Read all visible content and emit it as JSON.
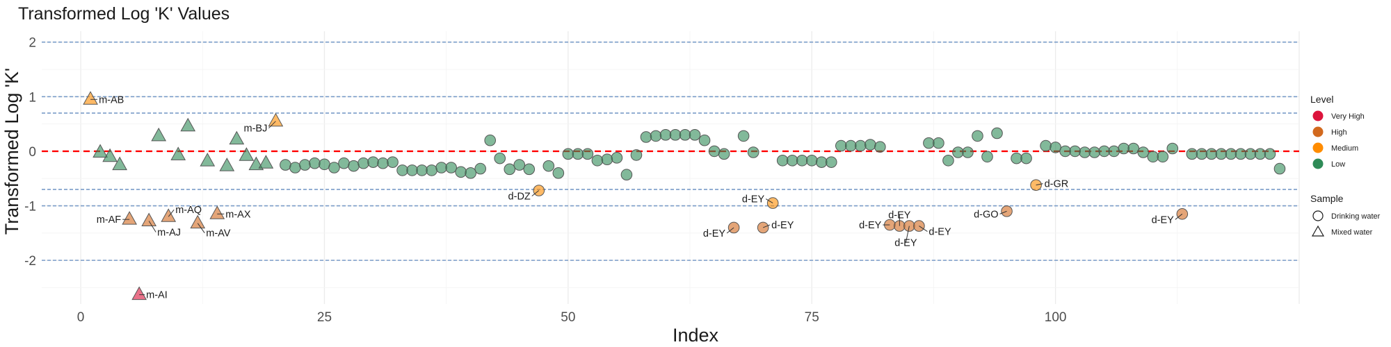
{
  "chart_data": {
    "type": "scatter",
    "title": "Transformed Log 'K' Values",
    "xlabel": "Index",
    "ylabel": "Transformed Log 'K'",
    "xlim": [
      -4,
      125
    ],
    "ylim": [
      -2.8,
      2.2
    ],
    "x_ticks": [
      0,
      25,
      50,
      75,
      100
    ],
    "y_ticks": [
      -2,
      -1,
      0,
      1,
      2
    ],
    "grid": true,
    "reference_lines": {
      "zero_line": {
        "y": 0,
        "color": "#ff0000",
        "style": "dashed"
      },
      "dotted_lines": {
        "y": [
          2,
          1,
          0.7,
          -0.7,
          -1,
          -2
        ],
        "color": "#7a9cc8",
        "style": "dashed"
      }
    },
    "legend": {
      "placement": "right",
      "level_title": "Level",
      "levels": [
        {
          "name": "Very High",
          "color": "#dc143c"
        },
        {
          "name": "High",
          "color": "#d2691e"
        },
        {
          "name": "Medium",
          "color": "#ff8c00"
        },
        {
          "name": "Low",
          "color": "#2e8b57"
        }
      ],
      "sample_title": "Sample",
      "samples": [
        {
          "name": "Drinking water",
          "shape": "circle"
        },
        {
          "name": "Mixed water",
          "shape": "triangle"
        }
      ]
    },
    "points": [
      {
        "x": 1,
        "y": 0.95,
        "level": "Medium",
        "sample": "Mixed water",
        "label": "m-AB"
      },
      {
        "x": 2,
        "y": -0.02,
        "level": "Low",
        "sample": "Mixed water"
      },
      {
        "x": 3,
        "y": -0.1,
        "level": "Low",
        "sample": "Mixed water"
      },
      {
        "x": 4,
        "y": -0.25,
        "level": "Low",
        "sample": "Mixed water"
      },
      {
        "x": 5,
        "y": -1.25,
        "level": "High",
        "sample": "Mixed water",
        "label": "m-AF"
      },
      {
        "x": 6,
        "y": -2.63,
        "level": "Very High",
        "sample": "Mixed water",
        "label": "m-AI"
      },
      {
        "x": 7,
        "y": -1.28,
        "level": "High",
        "sample": "Mixed water",
        "label": "m-AJ"
      },
      {
        "x": 8,
        "y": 0.28,
        "level": "Low",
        "sample": "Mixed water"
      },
      {
        "x": 9,
        "y": -1.2,
        "level": "High",
        "sample": "Mixed water",
        "label": "m-AQ"
      },
      {
        "x": 10,
        "y": -0.07,
        "level": "Low",
        "sample": "Mixed water"
      },
      {
        "x": 11,
        "y": 0.46,
        "level": "Low",
        "sample": "Mixed water"
      },
      {
        "x": 12,
        "y": -1.32,
        "level": "High",
        "sample": "Mixed water",
        "label": "m-AV"
      },
      {
        "x": 13,
        "y": -0.18,
        "level": "Low",
        "sample": "Mixed water"
      },
      {
        "x": 14,
        "y": -1.15,
        "level": "High",
        "sample": "Mixed water",
        "label": "m-AX"
      },
      {
        "x": 15,
        "y": -0.27,
        "level": "Low",
        "sample": "Mixed water"
      },
      {
        "x": 16,
        "y": 0.22,
        "level": "Low",
        "sample": "Mixed water"
      },
      {
        "x": 17,
        "y": -0.08,
        "level": "Low",
        "sample": "Mixed water"
      },
      {
        "x": 18,
        "y": -0.25,
        "level": "Low",
        "sample": "Mixed water"
      },
      {
        "x": 19,
        "y": -0.22,
        "level": "Low",
        "sample": "Mixed water"
      },
      {
        "x": 20,
        "y": 0.55,
        "level": "Medium",
        "sample": "Mixed water",
        "label": "m-BJ"
      },
      {
        "x": 21,
        "y": -0.25,
        "level": "Low",
        "sample": "Drinking water"
      },
      {
        "x": 22,
        "y": -0.3,
        "level": "Low",
        "sample": "Drinking water"
      },
      {
        "x": 23,
        "y": -0.25,
        "level": "Low",
        "sample": "Drinking water"
      },
      {
        "x": 24,
        "y": -0.22,
        "level": "Low",
        "sample": "Drinking water"
      },
      {
        "x": 25,
        "y": -0.24,
        "level": "Low",
        "sample": "Drinking water"
      },
      {
        "x": 26,
        "y": -0.3,
        "level": "Low",
        "sample": "Drinking water"
      },
      {
        "x": 27,
        "y": -0.22,
        "level": "Low",
        "sample": "Drinking water"
      },
      {
        "x": 28,
        "y": -0.27,
        "level": "Low",
        "sample": "Drinking water"
      },
      {
        "x": 29,
        "y": -0.22,
        "level": "Low",
        "sample": "Drinking water"
      },
      {
        "x": 30,
        "y": -0.2,
        "level": "Low",
        "sample": "Drinking water"
      },
      {
        "x": 31,
        "y": -0.22,
        "level": "Low",
        "sample": "Drinking water"
      },
      {
        "x": 32,
        "y": -0.2,
        "level": "Low",
        "sample": "Drinking water"
      },
      {
        "x": 33,
        "y": -0.35,
        "level": "Low",
        "sample": "Drinking water"
      },
      {
        "x": 34,
        "y": -0.35,
        "level": "Low",
        "sample": "Drinking water"
      },
      {
        "x": 35,
        "y": -0.35,
        "level": "Low",
        "sample": "Drinking water"
      },
      {
        "x": 36,
        "y": -0.35,
        "level": "Low",
        "sample": "Drinking water"
      },
      {
        "x": 37,
        "y": -0.3,
        "level": "Low",
        "sample": "Drinking water"
      },
      {
        "x": 38,
        "y": -0.3,
        "level": "Low",
        "sample": "Drinking water"
      },
      {
        "x": 39,
        "y": -0.38,
        "level": "Low",
        "sample": "Drinking water"
      },
      {
        "x": 40,
        "y": -0.4,
        "level": "Low",
        "sample": "Drinking water"
      },
      {
        "x": 41,
        "y": -0.32,
        "level": "Low",
        "sample": "Drinking water"
      },
      {
        "x": 42,
        "y": 0.2,
        "level": "Low",
        "sample": "Drinking water"
      },
      {
        "x": 43,
        "y": -0.13,
        "level": "Low",
        "sample": "Drinking water"
      },
      {
        "x": 44,
        "y": -0.33,
        "level": "Low",
        "sample": "Drinking water"
      },
      {
        "x": 45,
        "y": -0.25,
        "level": "Low",
        "sample": "Drinking water"
      },
      {
        "x": 46,
        "y": -0.33,
        "level": "Low",
        "sample": "Drinking water"
      },
      {
        "x": 47,
        "y": -0.72,
        "level": "Medium",
        "sample": "Drinking water",
        "label": "d-DZ"
      },
      {
        "x": 48,
        "y": -0.27,
        "level": "Low",
        "sample": "Drinking water"
      },
      {
        "x": 49,
        "y": -0.4,
        "level": "Low",
        "sample": "Drinking water"
      },
      {
        "x": 50,
        "y": -0.05,
        "level": "Low",
        "sample": "Drinking water"
      },
      {
        "x": 51,
        "y": -0.05,
        "level": "Low",
        "sample": "Drinking water"
      },
      {
        "x": 52,
        "y": -0.05,
        "level": "Low",
        "sample": "Drinking water"
      },
      {
        "x": 53,
        "y": -0.17,
        "level": "Low",
        "sample": "Drinking water"
      },
      {
        "x": 54,
        "y": -0.15,
        "level": "Low",
        "sample": "Drinking water"
      },
      {
        "x": 55,
        "y": -0.12,
        "level": "Low",
        "sample": "Drinking water"
      },
      {
        "x": 56,
        "y": -0.43,
        "level": "Low",
        "sample": "Drinking water"
      },
      {
        "x": 57,
        "y": -0.07,
        "level": "Low",
        "sample": "Drinking water"
      },
      {
        "x": 58,
        "y": 0.26,
        "level": "Low",
        "sample": "Drinking water"
      },
      {
        "x": 59,
        "y": 0.28,
        "level": "Low",
        "sample": "Drinking water"
      },
      {
        "x": 60,
        "y": 0.3,
        "level": "Low",
        "sample": "Drinking water"
      },
      {
        "x": 61,
        "y": 0.3,
        "level": "Low",
        "sample": "Drinking water"
      },
      {
        "x": 62,
        "y": 0.3,
        "level": "Low",
        "sample": "Drinking water"
      },
      {
        "x": 63,
        "y": 0.3,
        "level": "Low",
        "sample": "Drinking water"
      },
      {
        "x": 64,
        "y": 0.2,
        "level": "Low",
        "sample": "Drinking water"
      },
      {
        "x": 65,
        "y": 0.0,
        "level": "Low",
        "sample": "Drinking water"
      },
      {
        "x": 66,
        "y": -0.05,
        "level": "Low",
        "sample": "Drinking water"
      },
      {
        "x": 67,
        "y": -1.4,
        "level": "High",
        "sample": "Drinking water",
        "label": "d-EY"
      },
      {
        "x": 68,
        "y": 0.28,
        "level": "Low",
        "sample": "Drinking water"
      },
      {
        "x": 69,
        "y": -0.02,
        "level": "Low",
        "sample": "Drinking water"
      },
      {
        "x": 70,
        "y": -1.4,
        "level": "High",
        "sample": "Drinking water",
        "label": "d-EY"
      },
      {
        "x": 71,
        "y": -0.95,
        "level": "Medium",
        "sample": "Drinking water",
        "label": "d-EY"
      },
      {
        "x": 72,
        "y": -0.17,
        "level": "Low",
        "sample": "Drinking water"
      },
      {
        "x": 73,
        "y": -0.17,
        "level": "Low",
        "sample": "Drinking water"
      },
      {
        "x": 74,
        "y": -0.17,
        "level": "Low",
        "sample": "Drinking water"
      },
      {
        "x": 75,
        "y": -0.17,
        "level": "Low",
        "sample": "Drinking water"
      },
      {
        "x": 76,
        "y": -0.2,
        "level": "Low",
        "sample": "Drinking water"
      },
      {
        "x": 77,
        "y": -0.2,
        "level": "Low",
        "sample": "Drinking water"
      },
      {
        "x": 78,
        "y": 0.1,
        "level": "Low",
        "sample": "Drinking water"
      },
      {
        "x": 79,
        "y": 0.1,
        "level": "Low",
        "sample": "Drinking water"
      },
      {
        "x": 80,
        "y": 0.1,
        "level": "Low",
        "sample": "Drinking water"
      },
      {
        "x": 81,
        "y": 0.12,
        "level": "Low",
        "sample": "Drinking water"
      },
      {
        "x": 82,
        "y": 0.08,
        "level": "Low",
        "sample": "Drinking water"
      },
      {
        "x": 83,
        "y": -1.35,
        "level": "High",
        "sample": "Drinking water",
        "label": "d-EY"
      },
      {
        "x": 84,
        "y": -1.37,
        "level": "High",
        "sample": "Drinking water",
        "label": "d-EY"
      },
      {
        "x": 85,
        "y": -1.37,
        "level": "High",
        "sample": "Drinking water",
        "label": "d-EY"
      },
      {
        "x": 86,
        "y": -1.37,
        "level": "High",
        "sample": "Drinking water",
        "label": "d-EY"
      },
      {
        "x": 87,
        "y": 0.15,
        "level": "Low",
        "sample": "Drinking water"
      },
      {
        "x": 88,
        "y": 0.15,
        "level": "Low",
        "sample": "Drinking water"
      },
      {
        "x": 89,
        "y": -0.17,
        "level": "Low",
        "sample": "Drinking water"
      },
      {
        "x": 90,
        "y": -0.02,
        "level": "Low",
        "sample": "Drinking water"
      },
      {
        "x": 91,
        "y": -0.02,
        "level": "Low",
        "sample": "Drinking water"
      },
      {
        "x": 92,
        "y": 0.28,
        "level": "Low",
        "sample": "Drinking water"
      },
      {
        "x": 93,
        "y": -0.1,
        "level": "Low",
        "sample": "Drinking water"
      },
      {
        "x": 94,
        "y": 0.33,
        "level": "Low",
        "sample": "Drinking water"
      },
      {
        "x": 95,
        "y": -1.1,
        "level": "High",
        "sample": "Drinking water",
        "label": "d-GO"
      },
      {
        "x": 96,
        "y": -0.13,
        "level": "Low",
        "sample": "Drinking water"
      },
      {
        "x": 97,
        "y": -0.13,
        "level": "Low",
        "sample": "Drinking water"
      },
      {
        "x": 98,
        "y": -0.62,
        "level": "Medium",
        "sample": "Drinking water",
        "label": "d-GR"
      },
      {
        "x": 99,
        "y": 0.1,
        "level": "Low",
        "sample": "Drinking water"
      },
      {
        "x": 100,
        "y": 0.07,
        "level": "Low",
        "sample": "Drinking water"
      },
      {
        "x": 101,
        "y": 0.0,
        "level": "Low",
        "sample": "Drinking water"
      },
      {
        "x": 102,
        "y": 0.0,
        "level": "Low",
        "sample": "Drinking water"
      },
      {
        "x": 103,
        "y": -0.02,
        "level": "Low",
        "sample": "Drinking water"
      },
      {
        "x": 104,
        "y": -0.02,
        "level": "Low",
        "sample": "Drinking water"
      },
      {
        "x": 105,
        "y": 0.0,
        "level": "Low",
        "sample": "Drinking water"
      },
      {
        "x": 106,
        "y": 0.0,
        "level": "Low",
        "sample": "Drinking water"
      },
      {
        "x": 107,
        "y": 0.05,
        "level": "Low",
        "sample": "Drinking water"
      },
      {
        "x": 108,
        "y": 0.05,
        "level": "Low",
        "sample": "Drinking water"
      },
      {
        "x": 109,
        "y": -0.02,
        "level": "Low",
        "sample": "Drinking water"
      },
      {
        "x": 110,
        "y": -0.1,
        "level": "Low",
        "sample": "Drinking water"
      },
      {
        "x": 111,
        "y": -0.1,
        "level": "Low",
        "sample": "Drinking water"
      },
      {
        "x": 112,
        "y": 0.05,
        "level": "Low",
        "sample": "Drinking water"
      },
      {
        "x": 113,
        "y": -1.15,
        "level": "High",
        "sample": "Drinking water",
        "label": "d-EY"
      },
      {
        "x": 114,
        "y": -0.05,
        "level": "Low",
        "sample": "Drinking water"
      },
      {
        "x": 115,
        "y": -0.05,
        "level": "Low",
        "sample": "Drinking water"
      },
      {
        "x": 116,
        "y": -0.05,
        "level": "Low",
        "sample": "Drinking water"
      },
      {
        "x": 117,
        "y": -0.05,
        "level": "Low",
        "sample": "Drinking water"
      },
      {
        "x": 118,
        "y": -0.05,
        "level": "Low",
        "sample": "Drinking water"
      },
      {
        "x": 119,
        "y": -0.05,
        "level": "Low",
        "sample": "Drinking water"
      },
      {
        "x": 120,
        "y": -0.05,
        "level": "Low",
        "sample": "Drinking water"
      },
      {
        "x": 121,
        "y": -0.05,
        "level": "Low",
        "sample": "Drinking water"
      },
      {
        "x": 122,
        "y": -0.05,
        "level": "Low",
        "sample": "Drinking water"
      },
      {
        "x": 123,
        "y": -0.32,
        "level": "Low",
        "sample": "Drinking water"
      }
    ]
  }
}
